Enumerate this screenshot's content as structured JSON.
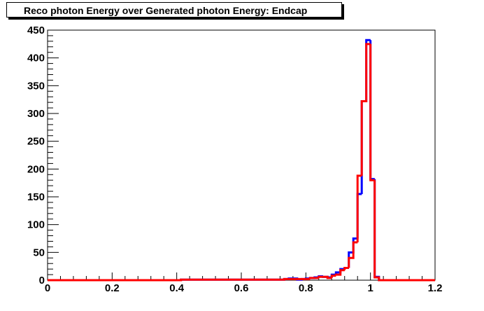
{
  "chart_data": {
    "type": "histogram",
    "title": "Reco photon Energy over Generated photon Energy: Endcap",
    "xlabel": "",
    "ylabel": "",
    "xlim": [
      0,
      1.2
    ],
    "ylim": [
      0,
      450
    ],
    "grid": false,
    "bin_width": 0.0133,
    "x_ticks": [
      "0",
      "0.2",
      "0.4",
      "0.6",
      "0.8",
      "1",
      "1.2"
    ],
    "y_ticks": [
      "0",
      "50",
      "100",
      "150",
      "200",
      "250",
      "300",
      "350",
      "400",
      "450"
    ],
    "series": [
      {
        "color": "#0000ff",
        "bins": [
          [
            0.413,
            1
          ],
          [
            0.6,
            1
          ],
          [
            0.613,
            1
          ],
          [
            0.667,
            1
          ],
          [
            0.707,
            1
          ],
          [
            0.733,
            2
          ],
          [
            0.747,
            3
          ],
          [
            0.773,
            1
          ],
          [
            0.787,
            2
          ],
          [
            0.8,
            3
          ],
          [
            0.813,
            4
          ],
          [
            0.827,
            5
          ],
          [
            0.84,
            7
          ],
          [
            0.853,
            6
          ],
          [
            0.867,
            5
          ],
          [
            0.88,
            10
          ],
          [
            0.893,
            14
          ],
          [
            0.907,
            20
          ],
          [
            0.92,
            22
          ],
          [
            0.933,
            50
          ],
          [
            0.947,
            75
          ],
          [
            0.96,
            155
          ],
          [
            0.973,
            322
          ],
          [
            0.987,
            432
          ],
          [
            1.0,
            182
          ],
          [
            1.013,
            6
          ]
        ]
      },
      {
        "color": "#ff0000",
        "bins": [
          [
            0.413,
            1
          ],
          [
            0.6,
            1
          ],
          [
            0.667,
            1
          ],
          [
            0.707,
            1
          ],
          [
            0.733,
            2
          ],
          [
            0.747,
            2
          ],
          [
            0.787,
            2
          ],
          [
            0.8,
            2
          ],
          [
            0.813,
            4
          ],
          [
            0.827,
            4
          ],
          [
            0.84,
            6
          ],
          [
            0.853,
            6
          ],
          [
            0.867,
            4
          ],
          [
            0.88,
            8
          ],
          [
            0.893,
            10
          ],
          [
            0.907,
            18
          ],
          [
            0.92,
            22
          ],
          [
            0.933,
            40
          ],
          [
            0.947,
            68
          ],
          [
            0.96,
            188
          ],
          [
            0.973,
            322
          ],
          [
            0.987,
            425
          ],
          [
            1.0,
            180
          ],
          [
            1.013,
            5
          ]
        ]
      }
    ]
  }
}
